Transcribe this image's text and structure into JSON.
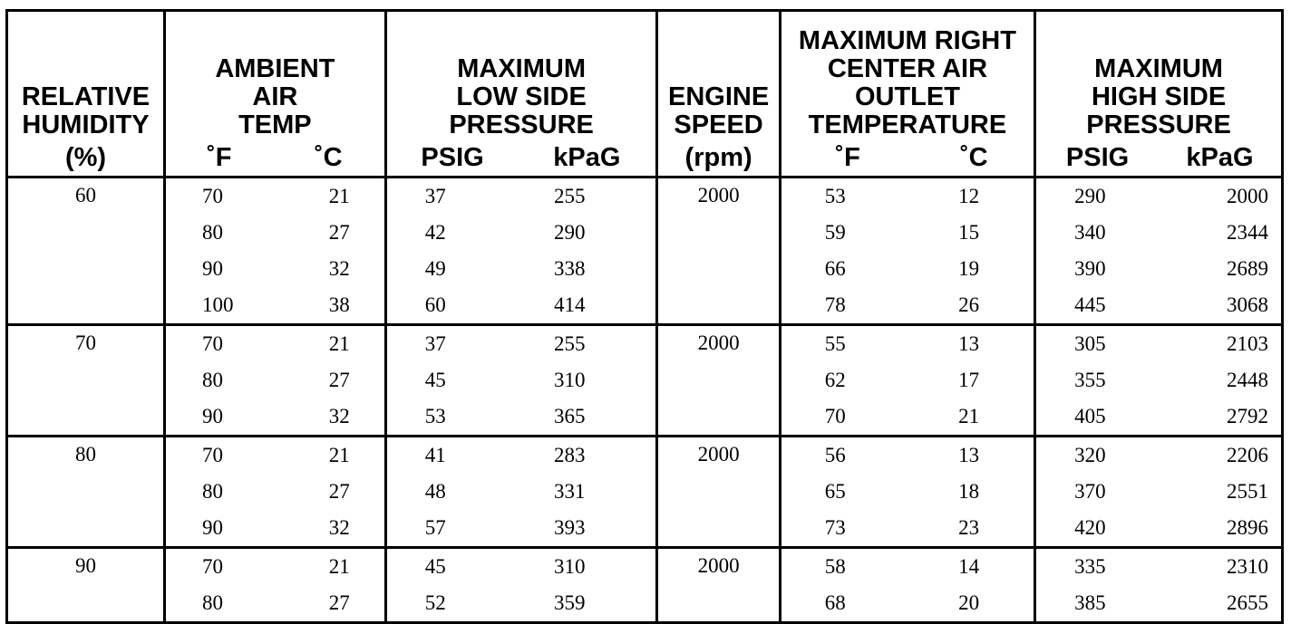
{
  "headers": {
    "relative_humidity": [
      "RELATIVE",
      "HUMIDITY"
    ],
    "ambient_air_temp": [
      "AMBIENT",
      "AIR",
      "TEMP"
    ],
    "max_low_side_pressure": [
      "MAXIMUM",
      "LOW SIDE",
      "PRESSURE"
    ],
    "engine_speed": [
      "ENGINE",
      "SPEED"
    ],
    "max_outlet_temp": [
      "MAXIMUM RIGHT",
      "CENTER AIR",
      "OUTLET",
      "TEMPERATURE"
    ],
    "max_high_side_pressure": [
      "MAXIMUM",
      "HIGH SIDE",
      "PRESSURE"
    ]
  },
  "units": [
    "(%)",
    "˚F",
    "˚C",
    "PSIG",
    "kPaG",
    "(rpm)",
    "˚F",
    "˚C",
    "PSIG",
    "kPaG"
  ],
  "groups": [
    {
      "humidity": "60",
      "rpm": "2000",
      "rows": [
        [
          "70",
          "21",
          "37",
          "255",
          "53",
          "12",
          "290",
          "2000"
        ],
        [
          "80",
          "27",
          "42",
          "290",
          "59",
          "15",
          "340",
          "2344"
        ],
        [
          "90",
          "32",
          "49",
          "338",
          "66",
          "19",
          "390",
          "2689"
        ],
        [
          "100",
          "38",
          "60",
          "414",
          "78",
          "26",
          "445",
          "3068"
        ]
      ]
    },
    {
      "humidity": "70",
      "rpm": "2000",
      "rows": [
        [
          "70",
          "21",
          "37",
          "255",
          "55",
          "13",
          "305",
          "2103"
        ],
        [
          "80",
          "27",
          "45",
          "310",
          "62",
          "17",
          "355",
          "2448"
        ],
        [
          "90",
          "32",
          "53",
          "365",
          "70",
          "21",
          "405",
          "2792"
        ]
      ]
    },
    {
      "humidity": "80",
      "rpm": "2000",
      "rows": [
        [
          "70",
          "21",
          "41",
          "283",
          "56",
          "13",
          "320",
          "2206"
        ],
        [
          "80",
          "27",
          "48",
          "331",
          "65",
          "18",
          "370",
          "2551"
        ],
        [
          "90",
          "32",
          "57",
          "393",
          "73",
          "23",
          "420",
          "2896"
        ]
      ]
    },
    {
      "humidity": "90",
      "rpm": "2000",
      "rows": [
        [
          "70",
          "21",
          "45",
          "310",
          "58",
          "14",
          "335",
          "2310"
        ],
        [
          "80",
          "27",
          "52",
          "359",
          "68",
          "20",
          "385",
          "2655"
        ]
      ]
    }
  ]
}
